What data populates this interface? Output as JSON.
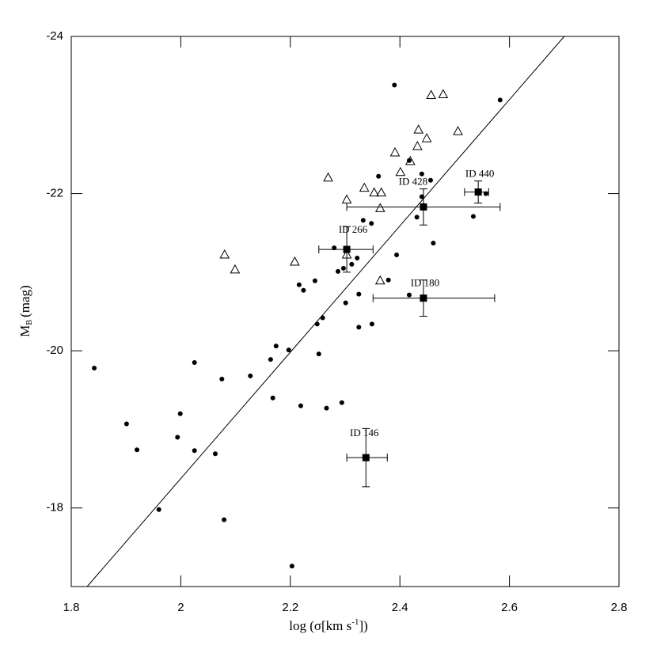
{
  "chart_data": {
    "type": "scatter",
    "xlabel": {
      "main": "log (σ[km s",
      "sup": "-1",
      "end": "])"
    },
    "ylabel": {
      "main": "M",
      "sub": "B",
      "end": "(mag)"
    },
    "xlim": [
      1.8,
      2.8
    ],
    "ylim": [
      -17,
      -24
    ],
    "xticks": [
      1.8,
      2,
      2.2,
      2.4,
      2.6,
      2.8
    ],
    "yticks": [
      -24,
      -22,
      -20,
      -18
    ],
    "series": [
      {
        "marker": "circle",
        "color": "#000000",
        "x": [
          1.842,
          1.901,
          1.92,
          1.96,
          1.999,
          1.994,
          2.025,
          2.025,
          2.063,
          2.075,
          2.079,
          2.127,
          2.164,
          2.168,
          2.174,
          2.197,
          2.219,
          2.216,
          2.224,
          2.203,
          2.252,
          2.245,
          2.249,
          2.259,
          2.266,
          2.28,
          2.287,
          2.294,
          2.297,
          2.301,
          2.312,
          2.322,
          2.325,
          2.325,
          2.333,
          2.348,
          2.349,
          2.361,
          2.379,
          2.39,
          2.394,
          2.417,
          2.417,
          2.431,
          2.44,
          2.44,
          2.456,
          2.461,
          2.534,
          2.557,
          2.583
        ],
        "y": [
          -19.78,
          -19.07,
          -18.74,
          -17.98,
          -19.2,
          -18.9,
          -19.85,
          -18.73,
          -18.69,
          -19.64,
          -17.85,
          -19.68,
          -19.89,
          -19.4,
          -20.06,
          -20.01,
          -19.3,
          -20.84,
          -20.77,
          -17.26,
          -19.96,
          -20.89,
          -20.34,
          -20.42,
          -19.27,
          -21.31,
          -21.01,
          -19.34,
          -21.05,
          -20.61,
          -21.1,
          -21.18,
          -20.72,
          -20.3,
          -21.66,
          -21.62,
          -20.34,
          -22.22,
          -20.9,
          -23.38,
          -21.22,
          -20.71,
          -22.42,
          -21.7,
          -22.25,
          -21.96,
          -22.17,
          -21.37,
          -21.71,
          -22.0,
          -23.19
        ]
      },
      {
        "marker": "triangle",
        "color": "#000000",
        "x": [
          2.08,
          2.099,
          2.208,
          2.269,
          2.303,
          2.303,
          2.335,
          2.353,
          2.366,
          2.364,
          2.364,
          2.391,
          2.401,
          2.419,
          2.432,
          2.434,
          2.449,
          2.457,
          2.479,
          2.506
        ],
        "y": [
          -21.22,
          -21.03,
          -21.13,
          -22.2,
          -21.92,
          -21.22,
          -22.07,
          -22.01,
          -22.01,
          -21.81,
          -20.89,
          -22.52,
          -22.27,
          -22.41,
          -22.6,
          -22.81,
          -22.7,
          -23.25,
          -23.26,
          -22.79
        ]
      },
      {
        "marker": "square",
        "color": "#000000",
        "labels": [
          "ID 146",
          "ID 180",
          "ID 266",
          "ID 428",
          "ID 440"
        ],
        "x": [
          2.338,
          2.443,
          2.303,
          2.443,
          2.543
        ],
        "y": [
          -18.64,
          -20.67,
          -21.29,
          -21.83,
          -22.02
        ],
        "xerr": [
          [
            0.035,
            0.039
          ],
          [
            0.092,
            0.13
          ],
          [
            0.051,
            0.048
          ],
          [
            0.14,
            0.14
          ],
          [
            0.025,
            0.019
          ]
        ],
        "yerr": [
          0.37,
          0.23,
          0.29,
          0.23,
          0.14
        ]
      },
      {
        "marker": "line",
        "color": "#000000",
        "x": [
          1.829,
          2.7
        ],
        "y": [
          -17,
          -24
        ]
      }
    ]
  }
}
